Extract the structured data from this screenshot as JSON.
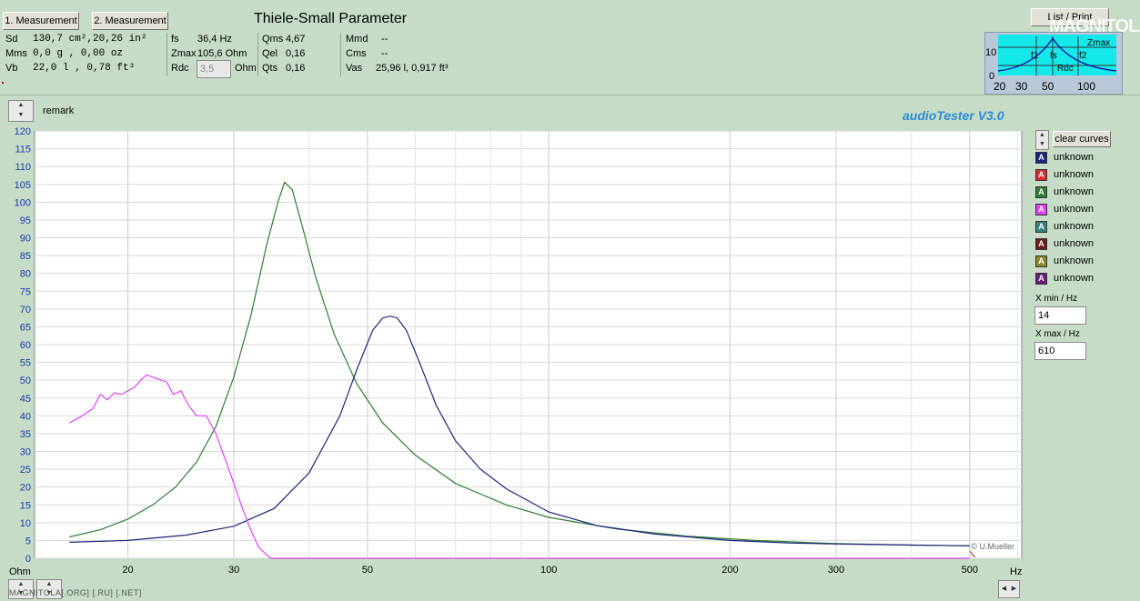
{
  "header": {
    "measure1_label": "1. Measurement",
    "measure2_label": "2. Measurement",
    "title": "Thiele-Small Parameter",
    "list_print_label": "List / Print",
    "brand": "MAGNITOLA",
    "footer_brand": "MAGNITOLA[.ORG] [.RU] [.NET]"
  },
  "params": {
    "sd": {
      "label": "Sd",
      "value": "130,7 cm²,20,26 in²"
    },
    "mms": {
      "label": "Mms",
      "value": "0,0 g  , 0,00 oz"
    },
    "vb": {
      "label": "Vb",
      "value": "22,0 l  , 0,78 ft³"
    },
    "fs": {
      "label": "fs",
      "value": "36,4 Hz"
    },
    "zmax": {
      "label": "Zmax",
      "value": "105,6 Ohm"
    },
    "rdc": {
      "label": "Rdc",
      "value": "3,5",
      "unit": "Ohm"
    },
    "qms": {
      "label": "Qms",
      "value": "4,67"
    },
    "qel": {
      "label": "Qel",
      "value": "0,16"
    },
    "qts": {
      "label": "Qts",
      "value": "0,16"
    },
    "mmd": {
      "label": "Mmd",
      "value": "--"
    },
    "cms": {
      "label": "Cms",
      "value": "--"
    },
    "vas": {
      "label": "Vas",
      "value": "25,96 l, 0,917 ft³"
    }
  },
  "mini_chart": {
    "y_ticks": [
      "10",
      "0"
    ],
    "x_ticks": [
      "20",
      "30",
      "50",
      "100"
    ],
    "labels": {
      "zmax": "Zmax",
      "f1": "f1",
      "fs": "fs",
      "f2": "f2",
      "rdc": "Rdc"
    }
  },
  "remark_label": "remark",
  "app_name": "audioTester  V3.0",
  "clear_curves_label": "clear curves",
  "legend": [
    {
      "color": "#1a237e",
      "glyph": "A",
      "name": "unknown"
    },
    {
      "color": "#d32f2f",
      "glyph": "A",
      "name": "unknown"
    },
    {
      "color": "#2e7d32",
      "glyph": "A",
      "name": "unknown"
    },
    {
      "color": "#e040fb",
      "glyph": "A",
      "name": "unknown"
    },
    {
      "color": "#37827a",
      "glyph": "A",
      "name": "unknown"
    },
    {
      "color": "#6d1b1b",
      "glyph": "A",
      "name": "unknown"
    },
    {
      "color": "#8a8a2a",
      "glyph": "A",
      "name": "unknown"
    },
    {
      "color": "#6a1b7a",
      "glyph": "A",
      "name": "unknown"
    }
  ],
  "xrange": {
    "xmin_label": "X min / Hz",
    "xmin_value": "14",
    "xmax_label": "X max / Hz",
    "xmax_value": "610"
  },
  "chart_data": {
    "type": "line",
    "title": "",
    "xlabel": "Hz",
    "ylabel": "Ohm",
    "x_scale": "log",
    "xlim": [
      14,
      610
    ],
    "ylim": [
      0,
      120
    ],
    "y_ticks": [
      0,
      5,
      10,
      15,
      20,
      25,
      30,
      35,
      40,
      45,
      50,
      55,
      60,
      65,
      70,
      75,
      80,
      85,
      90,
      95,
      100,
      105,
      110,
      115,
      120
    ],
    "x_ticks": [
      20,
      30,
      50,
      100,
      200,
      300,
      500
    ],
    "grid": true,
    "watermark": "© U.Mueller",
    "series": [
      {
        "color": "#2e7d32",
        "x": [
          16,
          18,
          20,
          22,
          24,
          26,
          28,
          30,
          32,
          34,
          35.5,
          36.4,
          37.5,
          39,
          41,
          44,
          48,
          53,
          60,
          70,
          85,
          100,
          130,
          170,
          220,
          300,
          400,
          500
        ],
        "y": [
          6,
          8,
          11,
          15,
          20,
          27,
          37,
          51,
          68,
          88,
          100,
          105.6,
          103.5,
          93,
          79,
          63,
          49,
          38,
          29,
          21,
          15,
          11.5,
          8.2,
          6.2,
          5,
          4.1,
          3.7,
          3.5
        ]
      },
      {
        "color": "#1a237e",
        "x": [
          16,
          20,
          25,
          30,
          35,
          40,
          45,
          48,
          51,
          53,
          54.5,
          56,
          58,
          61,
          65,
          70,
          77,
          85,
          100,
          120,
          150,
          200,
          250,
          300,
          400,
          500
        ],
        "y": [
          4.5,
          5,
          6.5,
          9,
          14,
          24,
          40,
          53,
          64,
          67.5,
          68,
          67.5,
          64,
          55,
          43,
          33,
          25,
          19.5,
          13,
          9.2,
          6.8,
          5,
          4.3,
          4,
          3.7,
          3.5
        ]
      },
      {
        "color": "#e040fb",
        "x": [
          16,
          16.8,
          17.5,
          18,
          18.5,
          19,
          19.5,
          20,
          20.5,
          21,
          21.5,
          22.3,
          23.2,
          23.8,
          24.5,
          25.2,
          26,
          27,
          28,
          29,
          30,
          31,
          32,
          33,
          34.5,
          36,
          40,
          60,
          100,
          200,
          500
        ],
        "y": [
          38,
          40,
          42,
          46,
          44.5,
          46.5,
          46,
          47,
          48,
          50,
          51.5,
          50.5,
          49.5,
          46,
          47,
          43,
          40,
          40,
          35,
          28,
          21,
          14,
          8,
          3,
          0,
          0,
          0,
          0,
          0,
          0,
          0
        ]
      }
    ]
  }
}
